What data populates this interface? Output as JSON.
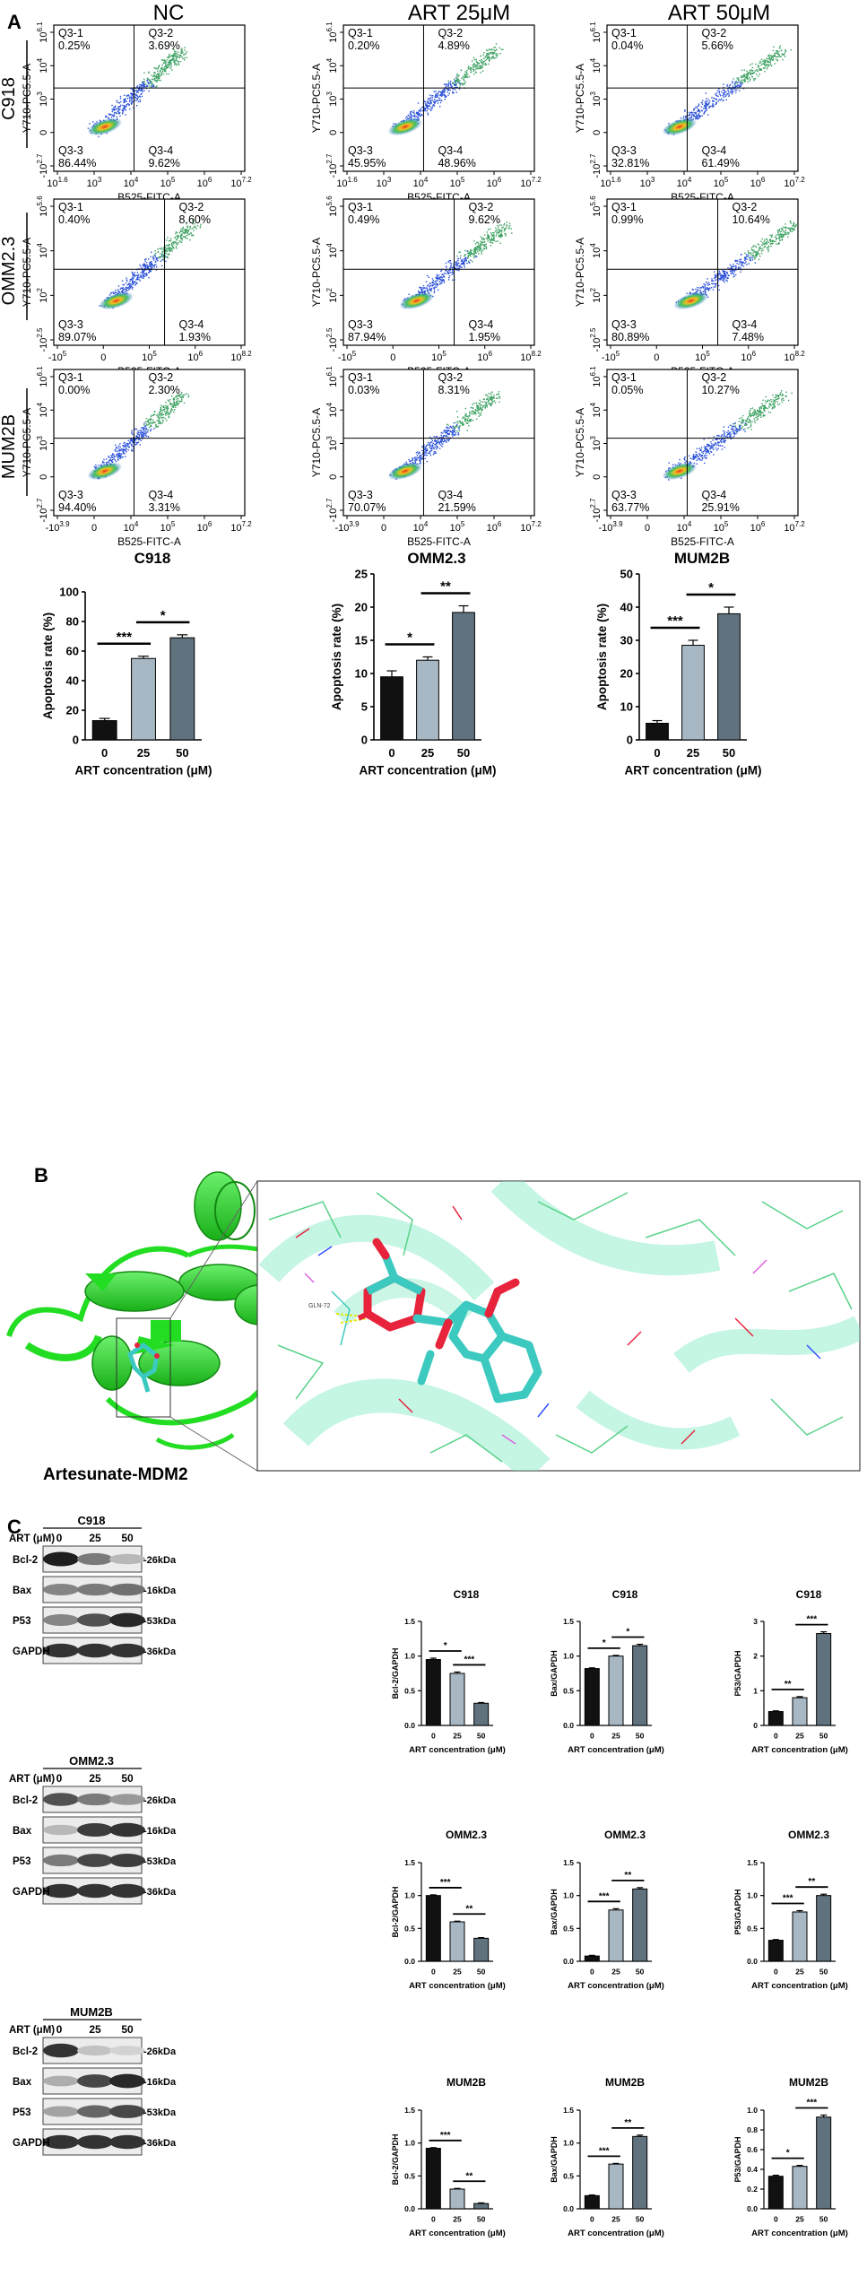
{
  "panel_labels": {
    "a": "A",
    "b": "B",
    "c": "C"
  },
  "flow": {
    "col_titles": [
      "NC",
      "ART 25μM",
      "ART 50μM"
    ],
    "row_labels": [
      "C918",
      "OMM2.3",
      "MUM2B"
    ],
    "y_axis_label": "Y710-PC5.5-A",
    "x_axis_label": "B525-FITC-A",
    "quadrant_names": [
      "Q3-1",
      "Q3-2",
      "Q3-3",
      "Q3-4"
    ],
    "rows": [
      {
        "x_ticks": [
          {
            "b": "10",
            "e": "1.6"
          },
          {
            "b": "10",
            "e": "3"
          },
          {
            "b": "10",
            "e": "4"
          },
          {
            "b": "10",
            "e": "5"
          },
          {
            "b": "10",
            "e": "6"
          },
          {
            "b": "10",
            "e": "7.2"
          }
        ],
        "y_ticks": [
          {
            "b": "-10",
            "e": "2.7"
          },
          {
            "b": "0",
            "e": ""
          },
          {
            "b": "10",
            "e": "3"
          },
          {
            "b": "10",
            "e": "4"
          },
          {
            "b": "10",
            "e": "6.1"
          }
        ],
        "plots": [
          {
            "q1": "0.25%",
            "q2": "3.69%",
            "q3": "86.44%",
            "q4": "9.62%"
          },
          {
            "q1": "0.20%",
            "q2": "4.89%",
            "q3": "45.95%",
            "q4": "48.96%"
          },
          {
            "q1": "0.04%",
            "q2": "5.66%",
            "q3": "32.81%",
            "q4": "61.49%"
          }
        ]
      },
      {
        "x_ticks": [
          {
            "b": "-10",
            "e": "5"
          },
          {
            "b": "0",
            "e": ""
          },
          {
            "b": "10",
            "e": "5"
          },
          {
            "b": "10",
            "e": "6"
          },
          {
            "b": "10",
            "e": "8.2"
          }
        ],
        "y_ticks": [
          {
            "b": "-10",
            "e": "2.5"
          },
          {
            "b": "10",
            "e": "2"
          },
          {
            "b": "10",
            "e": "4"
          },
          {
            "b": "10",
            "e": "5.6"
          }
        ],
        "plots": [
          {
            "q1": "0.40%",
            "q2": "8.60%",
            "q3": "89.07%",
            "q4": "1.93%"
          },
          {
            "q1": "0.49%",
            "q2": "9.62%",
            "q3": "87.94%",
            "q4": "1.95%"
          },
          {
            "q1": "0.99%",
            "q2": "10.64%",
            "q3": "80.89%",
            "q4": "7.48%"
          }
        ]
      },
      {
        "x_ticks": [
          {
            "b": "-10",
            "e": "3.9"
          },
          {
            "b": "0",
            "e": ""
          },
          {
            "b": "10",
            "e": "4"
          },
          {
            "b": "10",
            "e": "5"
          },
          {
            "b": "10",
            "e": "6"
          },
          {
            "b": "10",
            "e": "7.2"
          }
        ],
        "y_ticks": [
          {
            "b": "-10",
            "e": "2.7"
          },
          {
            "b": "0",
            "e": ""
          },
          {
            "b": "10",
            "e": "3"
          },
          {
            "b": "10",
            "e": "4"
          },
          {
            "b": "10",
            "e": "6.1"
          }
        ],
        "plots": [
          {
            "q1": "0.00%",
            "q2": "2.30%",
            "q3": "94.40%",
            "q4": "3.31%"
          },
          {
            "q1": "0.03%",
            "q2": "8.31%",
            "q3": "70.07%",
            "q4": "21.59%"
          },
          {
            "q1": "0.05%",
            "q2": "10.27%",
            "q3": "63.77%",
            "q4": "25.91%"
          }
        ]
      }
    ]
  },
  "docking": {
    "label": "Artesunate-MDM2",
    "residue_label": "GLN-72",
    "colors": {
      "protein": "#22dd22",
      "ligand": "#3cc9c0",
      "oxygen": "#e8233c",
      "hbond": "#e6e600"
    }
  },
  "western": {
    "art_label": "ART (μM)",
    "lanes": [
      "0",
      "25",
      "50"
    ],
    "proteins": [
      "Bcl-2",
      "Bax",
      "P53",
      "GAPDH"
    ],
    "sizes": [
      "-26kDa",
      "-16kDa",
      "-53kDa",
      "-36kDa"
    ],
    "cell_lines": [
      "C918",
      "OMM2.3",
      "MUM2B"
    ]
  },
  "chart_data": [
    {
      "type": "bar",
      "title": "C918",
      "categories": [
        "0",
        "25",
        "50"
      ],
      "values": [
        13,
        55,
        69
      ],
      "errors": [
        1.5,
        1.5,
        2
      ],
      "xlabel": "ART concentration (μM)",
      "ylabel": "Apoptosis rate (%)",
      "ylim": [
        0,
        100
      ],
      "yticks": [
        "0",
        "20",
        "40",
        "60",
        "80",
        "100"
      ],
      "sig": [
        {
          "from": 0,
          "to": 1,
          "label": "***"
        },
        {
          "from": 1,
          "to": 2,
          "label": "*"
        }
      ]
    },
    {
      "type": "bar",
      "title": "OMM2.3",
      "categories": [
        "0",
        "25",
        "50"
      ],
      "values": [
        9.5,
        12,
        19.2
      ],
      "errors": [
        0.9,
        0.5,
        1.0
      ],
      "xlabel": "ART concentration (μM)",
      "ylabel": "Apoptosis rate (%)",
      "ylim": [
        0,
        25
      ],
      "yticks": [
        "0",
        "5",
        "10",
        "15",
        "20",
        "25"
      ],
      "sig": [
        {
          "from": 0,
          "to": 1,
          "label": "*"
        },
        {
          "from": 1,
          "to": 2,
          "label": "**"
        }
      ]
    },
    {
      "type": "bar",
      "title": "MUM2B",
      "categories": [
        "0",
        "25",
        "50"
      ],
      "values": [
        5,
        28.5,
        38
      ],
      "errors": [
        0.8,
        1.5,
        2
      ],
      "xlabel": "ART concentration (μM)",
      "ylabel": "Apoptosis rate (%)",
      "ylim": [
        0,
        50
      ],
      "yticks": [
        "0",
        "10",
        "20",
        "30",
        "40",
        "50"
      ],
      "sig": [
        {
          "from": 0,
          "to": 1,
          "label": "***"
        },
        {
          "from": 1,
          "to": 2,
          "label": "*"
        }
      ]
    },
    {
      "type": "bar",
      "title": "C918",
      "categories": [
        "0",
        "25",
        "50"
      ],
      "values": [
        0.95,
        0.75,
        0.32
      ],
      "errors": [
        0.02,
        0.02,
        0.01
      ],
      "xlabel": "ART concentration (μM)",
      "ylabel": "Bcl-2/GAPDH",
      "ylim": [
        0,
        1.5
      ],
      "yticks": [
        "0.0",
        "0.5",
        "1.0",
        "1.5"
      ],
      "sig": [
        {
          "from": 0,
          "to": 1,
          "label": "*"
        },
        {
          "from": 1,
          "to": 2,
          "label": "***"
        }
      ]
    },
    {
      "type": "bar",
      "title": "C918",
      "categories": [
        "0",
        "25",
        "50"
      ],
      "values": [
        0.82,
        1.0,
        1.15
      ],
      "errors": [
        0.01,
        0.01,
        0.02
      ],
      "xlabel": "ART concentration (μM)",
      "ylabel": "Bax/GAPDH",
      "ylim": [
        0,
        1.5
      ],
      "yticks": [
        "0.0",
        "0.5",
        "1.0",
        "1.5"
      ],
      "sig": [
        {
          "from": 0,
          "to": 1,
          "label": "*"
        },
        {
          "from": 1,
          "to": 2,
          "label": "*"
        }
      ]
    },
    {
      "type": "bar",
      "title": "C918",
      "categories": [
        "0",
        "25",
        "50"
      ],
      "values": [
        0.4,
        0.8,
        2.65
      ],
      "errors": [
        0.02,
        0.03,
        0.05
      ],
      "xlabel": "ART concentration (μM)",
      "ylabel": "P53/GAPDH",
      "ylim": [
        0,
        3
      ],
      "yticks": [
        "0",
        "1",
        "2",
        "3"
      ],
      "sig": [
        {
          "from": 0,
          "to": 1,
          "label": "**"
        },
        {
          "from": 1,
          "to": 2,
          "label": "***"
        }
      ]
    },
    {
      "type": "bar",
      "title": "OMM2.3",
      "categories": [
        "0",
        "25",
        "50"
      ],
      "values": [
        1.0,
        0.6,
        0.35
      ],
      "errors": [
        0.01,
        0.01,
        0.01
      ],
      "xlabel": "ART concentration (μM)",
      "ylabel": "Bcl-2/GAPDH",
      "ylim": [
        0,
        1.5
      ],
      "yticks": [
        "0.0",
        "0.5",
        "1.0",
        "1.5"
      ],
      "sig": [
        {
          "from": 0,
          "to": 1,
          "label": "***"
        },
        {
          "from": 1,
          "to": 2,
          "label": "**"
        }
      ]
    },
    {
      "type": "bar",
      "title": "OMM2.3",
      "categories": [
        "0",
        "25",
        "50"
      ],
      "values": [
        0.08,
        0.78,
        1.1
      ],
      "errors": [
        0.01,
        0.02,
        0.02
      ],
      "xlabel": "ART concentration (μM)",
      "ylabel": "Bax/GAPDH",
      "ylim": [
        0,
        1.5
      ],
      "yticks": [
        "0.0",
        "0.5",
        "1.0",
        "1.5"
      ],
      "sig": [
        {
          "from": 0,
          "to": 1,
          "label": "***"
        },
        {
          "from": 1,
          "to": 2,
          "label": "**"
        }
      ]
    },
    {
      "type": "bar",
      "title": "OMM2.3",
      "categories": [
        "0",
        "25",
        "50"
      ],
      "values": [
        0.32,
        0.75,
        1.0
      ],
      "errors": [
        0.01,
        0.02,
        0.02
      ],
      "xlabel": "ART concentration (μM)",
      "ylabel": "P53/GAPDH",
      "ylim": [
        0,
        1.5
      ],
      "yticks": [
        "0.0",
        "0.5",
        "1.0",
        "1.5"
      ],
      "sig": [
        {
          "from": 0,
          "to": 1,
          "label": "***"
        },
        {
          "from": 1,
          "to": 2,
          "label": "**"
        }
      ]
    },
    {
      "type": "bar",
      "title": "MUM2B",
      "categories": [
        "0",
        "25",
        "50"
      ],
      "values": [
        0.92,
        0.3,
        0.08
      ],
      "errors": [
        0.01,
        0.01,
        0.01
      ],
      "xlabel": "ART concentration (μM)",
      "ylabel": "Bcl-2/GAPDH",
      "ylim": [
        0,
        1.5
      ],
      "yticks": [
        "0.0",
        "0.5",
        "1.0",
        "1.5"
      ],
      "sig": [
        {
          "from": 0,
          "to": 1,
          "label": "***"
        },
        {
          "from": 1,
          "to": 2,
          "label": "**"
        }
      ]
    },
    {
      "type": "bar",
      "title": "MUM2B",
      "categories": [
        "0",
        "25",
        "50"
      ],
      "values": [
        0.2,
        0.68,
        1.1
      ],
      "errors": [
        0.01,
        0.01,
        0.02
      ],
      "xlabel": "ART concentration (μM)",
      "ylabel": "Bax/GAPDH",
      "ylim": [
        0,
        1.5
      ],
      "yticks": [
        "0.0",
        "0.5",
        "1.0",
        "1.5"
      ],
      "sig": [
        {
          "from": 0,
          "to": 1,
          "label": "***"
        },
        {
          "from": 1,
          "to": 2,
          "label": "**"
        }
      ]
    },
    {
      "type": "bar",
      "title": "MUM2B",
      "categories": [
        "0",
        "25",
        "50"
      ],
      "values": [
        0.33,
        0.43,
        0.93
      ],
      "errors": [
        0.01,
        0.01,
        0.02
      ],
      "xlabel": "ART concentration (μM)",
      "ylabel": "P53/GAPDH",
      "ylim": [
        0,
        1.0
      ],
      "yticks": [
        "0.0",
        "0.2",
        "0.4",
        "0.6",
        "0.8",
        "1.0"
      ],
      "sig": [
        {
          "from": 0,
          "to": 1,
          "label": "*"
        },
        {
          "from": 1,
          "to": 2,
          "label": "***"
        }
      ]
    }
  ],
  "bar_colors": [
    "#111111",
    "#a7b8c4",
    "#5f727e"
  ]
}
